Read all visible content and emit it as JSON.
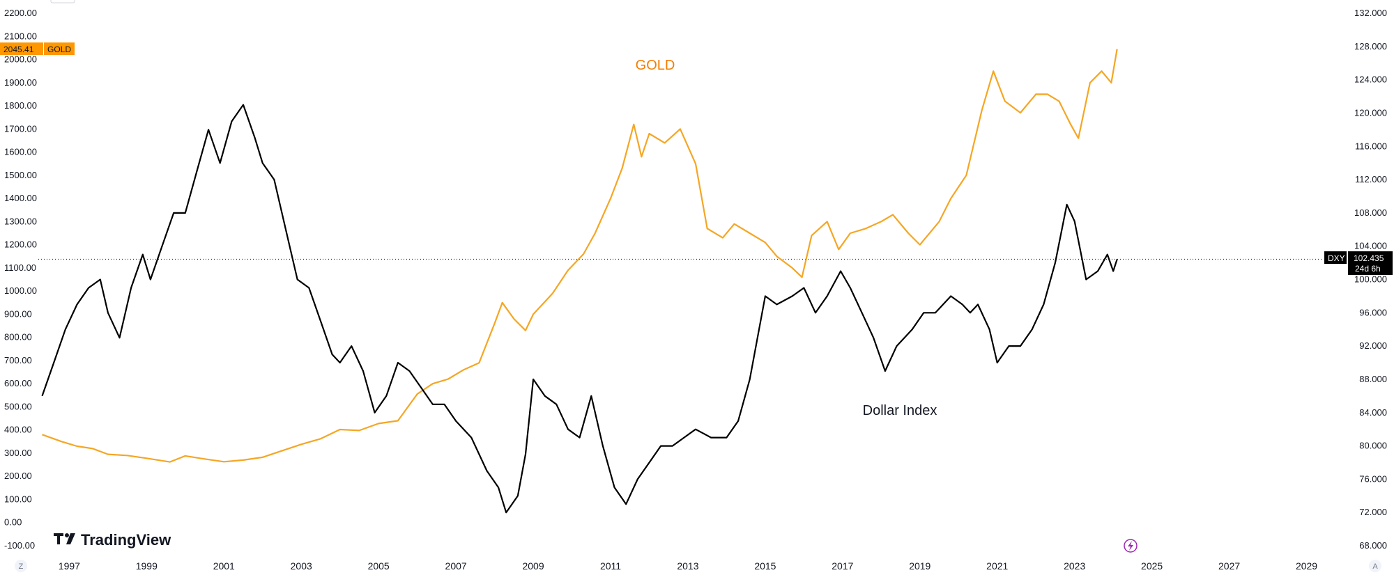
{
  "chart_data": {
    "type": "line",
    "title": "",
    "x_range": [
      1996.2,
      2030.0
    ],
    "x_tick_labels": [
      "1997",
      "1999",
      "2001",
      "2003",
      "2005",
      "2007",
      "2009",
      "2011",
      "2013",
      "2015",
      "2017",
      "2019",
      "2021",
      "2023",
      "2025",
      "2027",
      "2029"
    ],
    "left_axis": {
      "ylim": [
        -100,
        2200
      ],
      "tick_labels": [
        "-100.00",
        "0.00",
        "100.00",
        "200.00",
        "300.00",
        "400.00",
        "500.00",
        "600.00",
        "700.00",
        "800.00",
        "900.00",
        "1000.00",
        "1100.00",
        "1200.00",
        "1300.00",
        "1400.00",
        "1500.00",
        "1600.00",
        "1700.00",
        "1800.00",
        "1900.00",
        "2000.00",
        "2100.00",
        "2200.00"
      ]
    },
    "right_axis": {
      "ylim": [
        68,
        132
      ],
      "tick_labels": [
        "68.000",
        "72.000",
        "76.000",
        "80.000",
        "84.000",
        "88.000",
        "92.000",
        "96.000",
        "100.000",
        "104.000",
        "108.000",
        "112.000",
        "116.000",
        "120.000",
        "124.000",
        "128.000",
        "132.000"
      ]
    },
    "series": [
      {
        "name": "GOLD",
        "axis": "left",
        "color": "#f5a623",
        "last_value": "2045.41",
        "x": [
          1996.3,
          1996.8,
          1997.2,
          1997.6,
          1998.0,
          1998.5,
          1999.0,
          1999.6,
          2000.0,
          2000.5,
          2001.0,
          2001.5,
          2002.0,
          2002.5,
          2003.0,
          2003.5,
          2004.0,
          2004.5,
          2005.0,
          2005.5,
          2006.0,
          2006.4,
          2006.8,
          2007.2,
          2007.6,
          2008.0,
          2008.2,
          2008.5,
          2008.8,
          2009.0,
          2009.5,
          2009.9,
          2010.3,
          2010.6,
          2011.0,
          2011.3,
          2011.6,
          2011.8,
          2012.0,
          2012.4,
          2012.8,
          2013.2,
          2013.5,
          2013.9,
          2014.2,
          2014.6,
          2015.0,
          2015.3,
          2015.7,
          2015.95,
          2016.2,
          2016.6,
          2016.9,
          2017.2,
          2017.6,
          2018.0,
          2018.3,
          2018.7,
          2019.0,
          2019.5,
          2019.8,
          2020.2,
          2020.6,
          2020.9,
          2021.2,
          2021.6,
          2022.0,
          2022.3,
          2022.6,
          2022.9,
          2023.1,
          2023.4,
          2023.7,
          2023.95,
          2024.1
        ],
        "y": [
          380,
          350,
          330,
          320,
          295,
          290,
          278,
          262,
          288,
          275,
          263,
          270,
          282,
          310,
          338,
          362,
          402,
          398,
          428,
          440,
          555,
          600,
          620,
          660,
          690,
          860,
          950,
          880,
          830,
          900,
          990,
          1090,
          1160,
          1250,
          1400,
          1530,
          1720,
          1580,
          1680,
          1640,
          1700,
          1550,
          1270,
          1230,
          1290,
          1250,
          1210,
          1150,
          1100,
          1060,
          1240,
          1300,
          1180,
          1250,
          1270,
          1300,
          1330,
          1250,
          1200,
          1300,
          1400,
          1500,
          1780,
          1950,
          1820,
          1770,
          1850,
          1850,
          1820,
          1720,
          1660,
          1900,
          1950,
          1900,
          2045.41
        ]
      },
      {
        "name": "DXY",
        "axis": "right",
        "color": "#000000",
        "last_value": "102.435",
        "countdown": "24d 6h",
        "x": [
          1996.3,
          1996.6,
          1996.9,
          1997.2,
          1997.5,
          1997.8,
          1998.0,
          1998.3,
          1998.6,
          1998.9,
          1999.1,
          1999.4,
          1999.7,
          2000.0,
          2000.3,
          2000.6,
          2000.9,
          2001.2,
          2001.5,
          2001.8,
          2002.0,
          2002.3,
          2002.6,
          2002.9,
          2003.2,
          2003.5,
          2003.8,
          2004.0,
          2004.3,
          2004.6,
          2004.9,
          2005.2,
          2005.5,
          2005.8,
          2006.1,
          2006.4,
          2006.7,
          2007.0,
          2007.4,
          2007.8,
          2008.1,
          2008.3,
          2008.6,
          2008.8,
          2009.0,
          2009.3,
          2009.6,
          2009.9,
          2010.2,
          2010.5,
          2010.8,
          2011.1,
          2011.4,
          2011.7,
          2012.0,
          2012.3,
          2012.6,
          2012.9,
          2013.2,
          2013.6,
          2014.0,
          2014.3,
          2014.6,
          2015.0,
          2015.3,
          2015.7,
          2016.0,
          2016.3,
          2016.6,
          2016.95,
          2017.2,
          2017.5,
          2017.8,
          2018.1,
          2018.4,
          2018.8,
          2019.1,
          2019.4,
          2019.8,
          2020.1,
          2020.3,
          2020.5,
          2020.8,
          2021.0,
          2021.3,
          2021.6,
          2021.9,
          2022.2,
          2022.5,
          2022.8,
          2023.0,
          2023.3,
          2023.6,
          2023.85,
          2024.0,
          2024.1
        ],
        "y": [
          86,
          90,
          94,
          97,
          99,
          100,
          96,
          93,
          99,
          103,
          100,
          104,
          108,
          108,
          113,
          118,
          114,
          119,
          121,
          117,
          114,
          112,
          106,
          100,
          99,
          95,
          91,
          90,
          92,
          89,
          84,
          86,
          90,
          89,
          87,
          85,
          85,
          83,
          81,
          77,
          75,
          72,
          74,
          79,
          88,
          86,
          85,
          82,
          81,
          86,
          80,
          75,
          73,
          76,
          78,
          80,
          80,
          81,
          82,
          81,
          81,
          83,
          88,
          98,
          97,
          98,
          99,
          96,
          98,
          101,
          99,
          96,
          93,
          89,
          92,
          94,
          96,
          96,
          98,
          97,
          96,
          97,
          94,
          90,
          92,
          92,
          94,
          97,
          102,
          109,
          107,
          100,
          101,
          103,
          101,
          102.435
        ]
      }
    ],
    "annotations": [
      "GOLD",
      "Dollar Index"
    ],
    "reference_line": {
      "axis": "right",
      "value": 102.435,
      "style": "dotted"
    },
    "grid": false
  },
  "ui": {
    "logo_text": "TradingView",
    "left_corner_label": "Z",
    "right_corner_label": "A",
    "left_tag_value": "2045.41",
    "left_tag_symbol": "GOLD",
    "right_tag_symbol": "DXY",
    "right_tag_value": "102.435",
    "right_tag_countdown": "24d 6h",
    "colors": {
      "gold": "#f5a623",
      "gold_tag": "#ff9800",
      "dxy": "#000000",
      "gold_annotation": "#f57c00",
      "replay": "#9c27b0"
    },
    "icons": {
      "replay": "lightning-icon",
      "logo": "tradingview-logo-icon"
    }
  }
}
